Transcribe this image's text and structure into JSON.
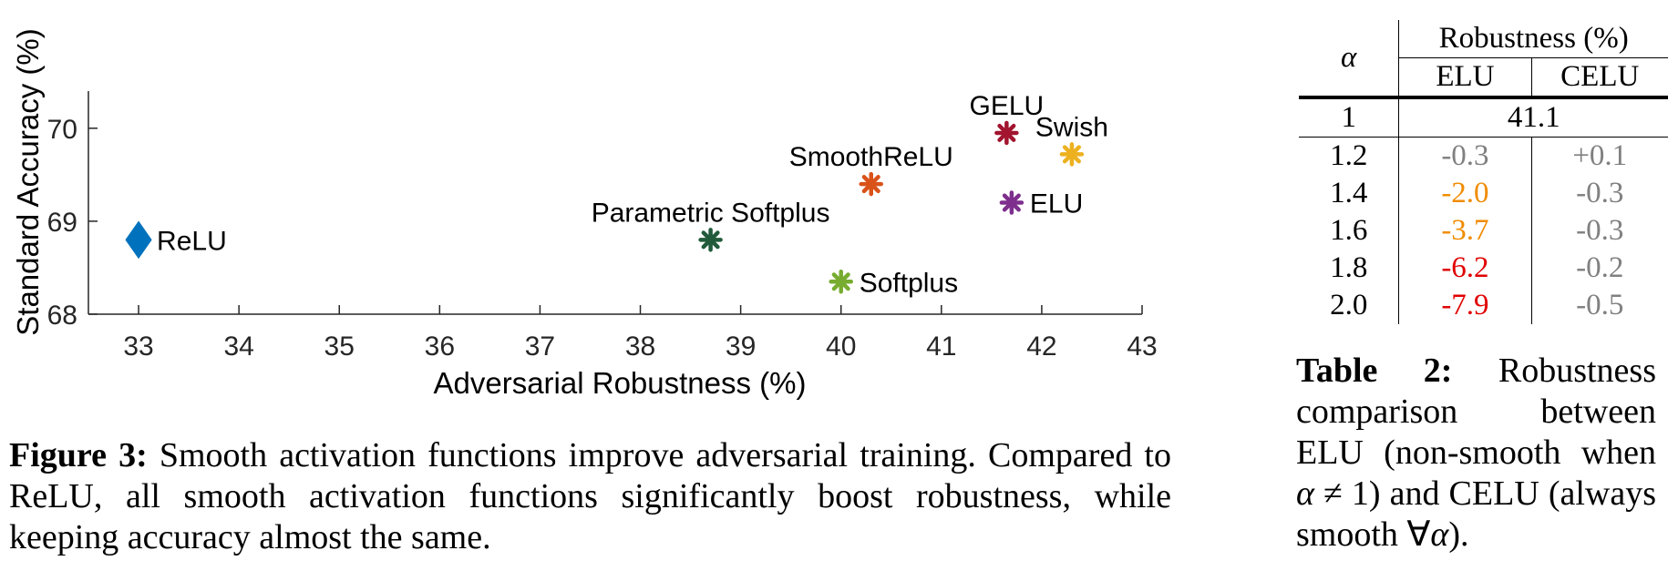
{
  "chart_data": {
    "type": "scatter",
    "xlabel": "Adversarial Robustness (%)",
    "ylabel": "Standard Accuracy (%)",
    "xlim": [
      32.5,
      43
    ],
    "ylim": [
      68,
      70.4
    ],
    "xticks": [
      33,
      34,
      35,
      36,
      37,
      38,
      39,
      40,
      41,
      42,
      43
    ],
    "yticks": [
      68,
      69,
      70
    ],
    "grid": false,
    "points": [
      {
        "name": "ReLU",
        "x": 33.0,
        "y": 68.8,
        "color": "#0072BD",
        "marker": "diamond",
        "label_side": "right"
      },
      {
        "name": "Parametric Softplus",
        "x": 38.7,
        "y": 68.8,
        "color": "#215B3B",
        "marker": "asterisk",
        "label_side": "above"
      },
      {
        "name": "Softplus",
        "x": 40.0,
        "y": 68.35,
        "color": "#77AC30",
        "marker": "asterisk",
        "label_side": "right"
      },
      {
        "name": "SmoothReLU",
        "x": 40.3,
        "y": 69.4,
        "color": "#D95319",
        "marker": "asterisk",
        "label_side": "above"
      },
      {
        "name": "GELU",
        "x": 41.65,
        "y": 69.95,
        "color": "#A2142F",
        "marker": "asterisk",
        "label_side": "above"
      },
      {
        "name": "ELU",
        "x": 41.7,
        "y": 69.2,
        "color": "#7E2F8E",
        "marker": "asterisk",
        "label_side": "right"
      },
      {
        "name": "Swish",
        "x": 42.3,
        "y": 69.72,
        "color": "#EDB120",
        "marker": "asterisk",
        "label_side": "above"
      }
    ]
  },
  "figure_caption": {
    "label": "Figure 3:",
    "text": " Smooth activation functions improve adversarial training. Compared to ReLU, all smooth activation functions significantly boost robustness, while keeping accuracy almost the same."
  },
  "table": {
    "alpha_header": "α",
    "group_header": "Robustness (%)",
    "col1": "ELU",
    "col2": "CELU",
    "base_alpha": "1",
    "base_value": "41.1",
    "rows": [
      {
        "alpha": "1.2",
        "elu": "-0.3",
        "elu_color": "#808080",
        "celu": "+0.1",
        "celu_color": "#808080"
      },
      {
        "alpha": "1.4",
        "elu": "-2.0",
        "elu_color": "#F08C00",
        "celu": "-0.3",
        "celu_color": "#808080"
      },
      {
        "alpha": "1.6",
        "elu": "-3.7",
        "elu_color": "#F08C00",
        "celu": "-0.3",
        "celu_color": "#808080"
      },
      {
        "alpha": "1.8",
        "elu": "-6.2",
        "elu_color": "#E00000",
        "celu": "-0.2",
        "celu_color": "#808080"
      },
      {
        "alpha": "2.0",
        "elu": "-7.9",
        "elu_color": "#E00000",
        "celu": "-0.5",
        "celu_color": "#808080"
      }
    ]
  },
  "table_caption": {
    "label": "Table 2:",
    "text_a": " Robustness comparison between ELU (non-smooth when ",
    "alpha": "α",
    "neq": " ≠ 1) and CELU (always smooth ",
    "forall": "∀",
    "alpha2": "α",
    "end": ")."
  }
}
